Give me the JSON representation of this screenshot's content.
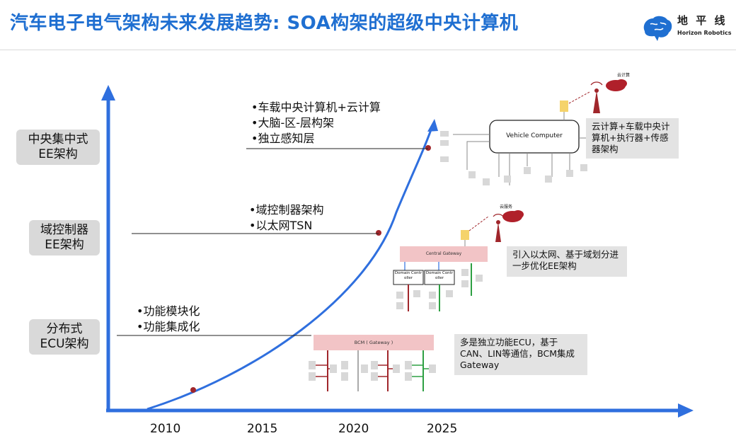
{
  "header": {
    "title": "汽车电子电气架构未来发展趋势: SOA构架的超级中央计算机",
    "logo_cn": "地 平 线",
    "logo_en": "Horizon Robotics"
  },
  "levels": [
    {
      "label_line1": "中央集中式",
      "label_line2": "EE架构"
    },
    {
      "label_line1": "域控制器",
      "label_line2": "EE架构"
    },
    {
      "label_line1": "分布式",
      "label_line2": "ECU架构"
    }
  ],
  "bullets": {
    "central": [
      "•车载中央计算机+云计算",
      "•大脑-区-层构架",
      "•独立感知层"
    ],
    "domain": [
      "•域控制器架构",
      "•以太网TSN"
    ],
    "distributed": [
      "•功能模块化",
      "•功能集成化"
    ]
  },
  "notes": {
    "central": "云计算+车载中央计算机+执行器+传感器架构",
    "domain": "引入以太网、基于域划分进一步优化EE架构",
    "distributed": "多是独立功能ECU，基于CAN、LIN等通信，BCM集成Gateway"
  },
  "diagrams": {
    "vehicle_computer": "Vehicle Computer",
    "cloud_top": "云计算",
    "cloud_mid": "云服务",
    "central_gateway": "Central Gateway",
    "domain_ctrl_1": "Domain Controller",
    "domain_ctrl_2": "Domain Controller",
    "bcm": "BCM ( Gateway )"
  },
  "years": [
    "2010",
    "2015",
    "2020",
    "2025"
  ],
  "colors": {
    "accent": "#1f6fd1",
    "curve": "#2f6fde",
    "marker": "#a0262b",
    "cloud": "#b0202a"
  }
}
